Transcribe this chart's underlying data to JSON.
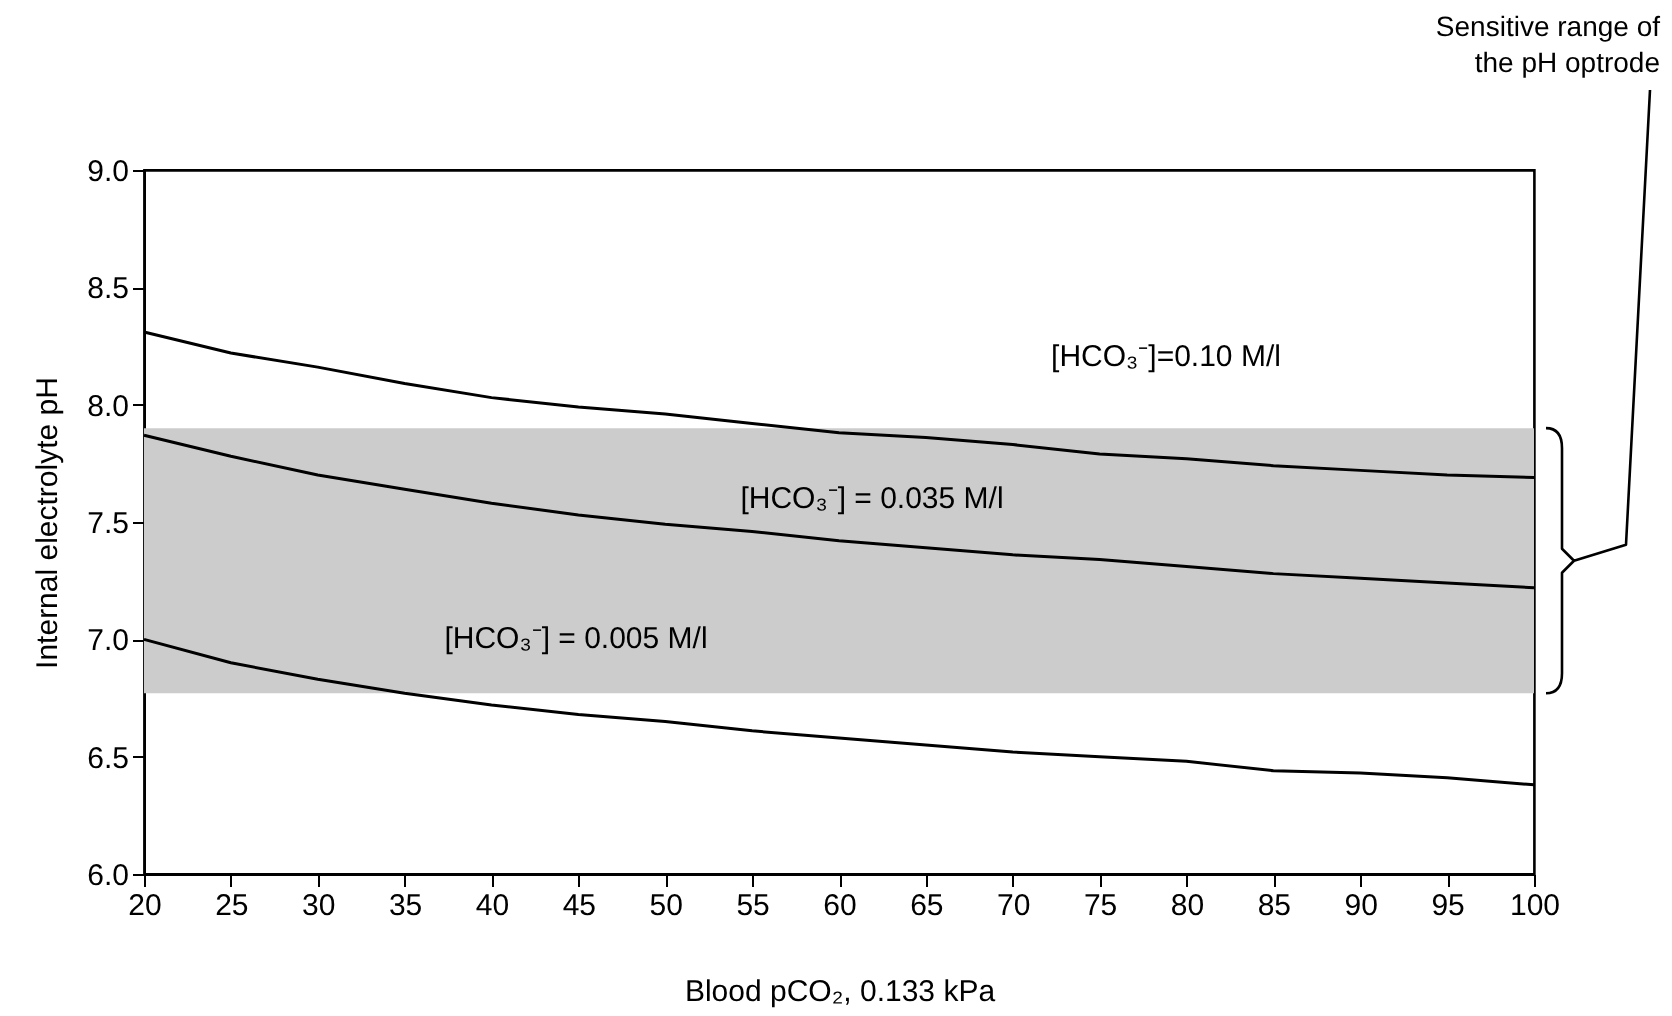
{
  "chart_data": {
    "type": "line",
    "xlabel": "Blood pCO₂, 0.133 kPa",
    "ylabel": "Internal electrolyte pH",
    "categories": [
      "20",
      "25",
      "30",
      "35",
      "40",
      "45",
      "50",
      "55",
      "60",
      "65",
      "70",
      "75",
      "80",
      "85",
      "90",
      "95",
      "100"
    ],
    "series": [
      {
        "color": "#000000",
        "values": [
          8.31,
          8.22,
          8.16,
          8.09,
          8.03,
          7.99,
          7.96,
          7.92,
          7.88,
          7.86,
          7.83,
          7.79,
          7.77,
          7.74,
          7.72,
          7.7,
          7.69
        ]
      },
      {
        "color": "#000000",
        "values": [
          7.87,
          7.78,
          7.7,
          7.64,
          7.58,
          7.53,
          7.49,
          7.46,
          7.42,
          7.39,
          7.36,
          7.34,
          7.31,
          7.28,
          7.26,
          7.24,
          7.22
        ]
      },
      {
        "color": "#000000",
        "values": [
          7.0,
          6.9,
          6.83,
          6.77,
          6.72,
          6.68,
          6.65,
          6.61,
          6.58,
          6.55,
          6.52,
          6.5,
          6.48,
          6.44,
          6.43,
          6.41,
          6.38
        ]
      }
    ],
    "ylim": [
      6.0,
      9.0
    ],
    "yticks": [
      {
        "value": 6,
        "label": "6.0"
      },
      6.5,
      {
        "value": 7,
        "label": "7.0"
      },
      7.5,
      {
        "value": 8,
        "label": "8.0"
      },
      8.5,
      {
        "value": 9,
        "label": "9.0"
      }
    ],
    "bands": [
      {
        "axis": "y",
        "from": 6.77,
        "to": 7.9,
        "color": "#cccccc"
      }
    ],
    "annotations": [
      "[HCO₃⁻]=0.10 M/l",
      "[HCO₃⁻] = 0.035 M/l",
      "[HCO₃⁻] = 0.005 M/l",
      "Sensitive range of the pH optrode"
    ],
    "grid": false,
    "legend": false,
    "marker": "none",
    "line_style": "solid"
  }
}
